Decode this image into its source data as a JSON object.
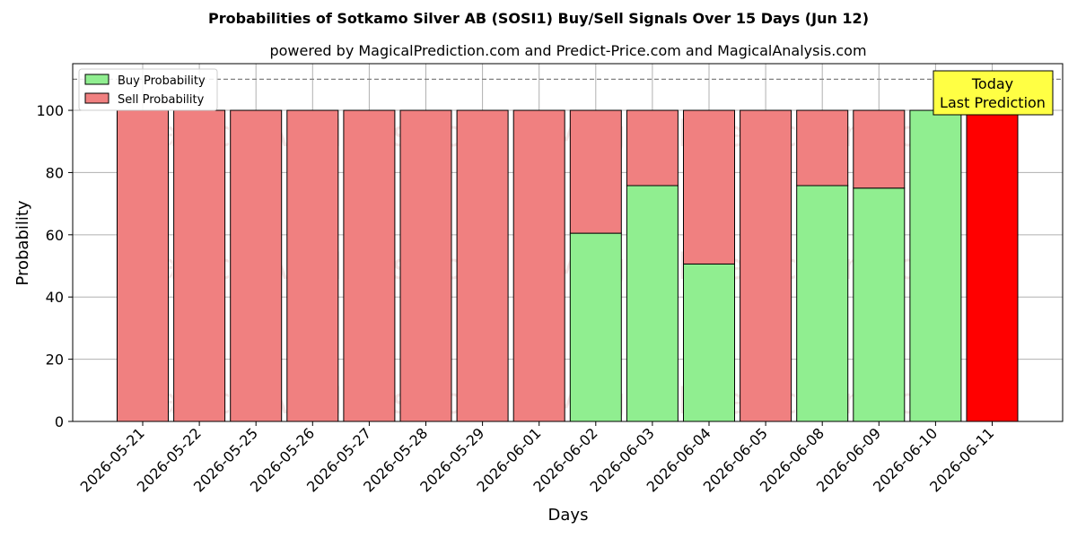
{
  "chart_data": {
    "type": "bar",
    "stacked": true,
    "title": "Probabilities of Sotkamo Silver AB (SOSI1) Buy/Sell Signals Over 15 Days (Jun 12)",
    "subtitle": "powered by MagicalPrediction.com and Predict-Price.com and MagicalAnalysis.com",
    "xlabel": "Days",
    "ylabel": "Probability",
    "ylim": [
      0,
      115
    ],
    "yticks": [
      0,
      20,
      40,
      60,
      80,
      100
    ],
    "grid": true,
    "legend_position": "top-left",
    "reference_line": 110,
    "categories": [
      "2026-05-21",
      "2026-05-22",
      "2026-05-25",
      "2026-05-26",
      "2026-05-27",
      "2026-05-28",
      "2026-05-29",
      "2026-06-01",
      "2026-06-02",
      "2026-06-03",
      "2026-06-04",
      "2026-06-05",
      "2026-06-08",
      "2026-06-09",
      "2026-06-10",
      "2026-06-11"
    ],
    "series": [
      {
        "name": "Buy Probability",
        "color": "#90ee90",
        "values": [
          0,
          0,
          0,
          0,
          0,
          0,
          0,
          0,
          60.5,
          75.8,
          50.6,
          0,
          75.8,
          75,
          100,
          0
        ]
      },
      {
        "name": "Sell Probability",
        "color": "#f08080",
        "values": [
          100,
          100,
          100,
          100,
          100,
          100,
          100,
          100,
          39.5,
          24.2,
          49.4,
          100,
          24.2,
          25,
          0,
          100
        ]
      }
    ],
    "highlight": {
      "index": 15,
      "color": "#ff0000"
    },
    "annotation": {
      "line1": "Today",
      "line2": "Last Prediction",
      "background": "#ffff44"
    },
    "watermarks": [
      "MagicalAnalysis.com",
      "MagicalPrediction.com"
    ]
  }
}
